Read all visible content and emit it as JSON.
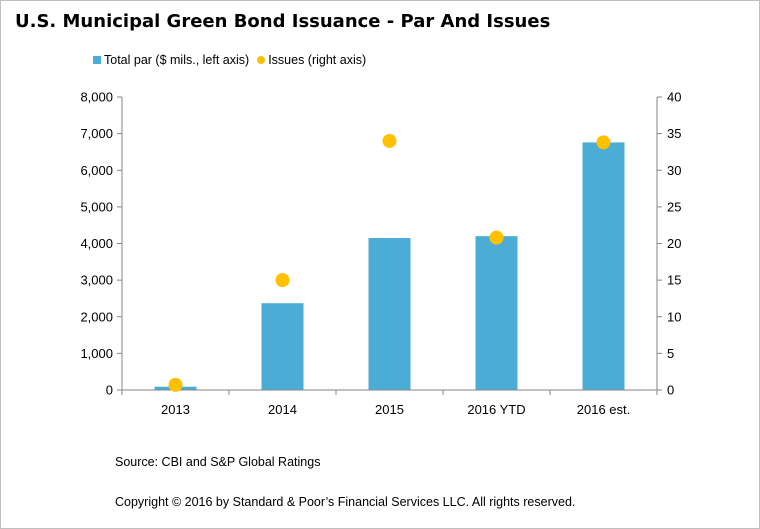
{
  "chart_data": {
    "type": "bar",
    "title": "U.S. Municipal Green Bond Issuance - Par And Issues",
    "categories": [
      "2013",
      "2014",
      "2015",
      "2016 YTD",
      "2016 est."
    ],
    "series": [
      {
        "name": "Total par ($ mils., left axis)",
        "type": "bar",
        "axis": "left",
        "values": [
          90,
          2370,
          4150,
          4200,
          6760
        ],
        "color": "#4bacd6"
      },
      {
        "name": "Issues (right axis)",
        "type": "scatter",
        "axis": "right",
        "values": [
          0.7,
          15,
          34,
          20.8,
          33.8
        ],
        "color": "#ffc000"
      }
    ],
    "y_left": {
      "min": 0,
      "max": 8000,
      "step": 1000,
      "tick_labels": [
        "0",
        "1,000",
        "2,000",
        "3,000",
        "4,000",
        "5,000",
        "6,000",
        "7,000",
        "8,000"
      ]
    },
    "y_right": {
      "min": 0,
      "max": 40,
      "step": 5,
      "tick_labels": [
        "0",
        "5",
        "10",
        "15",
        "20",
        "25",
        "30",
        "35",
        "40"
      ]
    },
    "grid": false,
    "legend_position": "top-left"
  },
  "footer": {
    "source": "Source: CBI and S&P  Global Ratings",
    "copyright": "Copyright © 2016 by Standard & Poor’s Financial Services LLC. All rights reserved."
  }
}
